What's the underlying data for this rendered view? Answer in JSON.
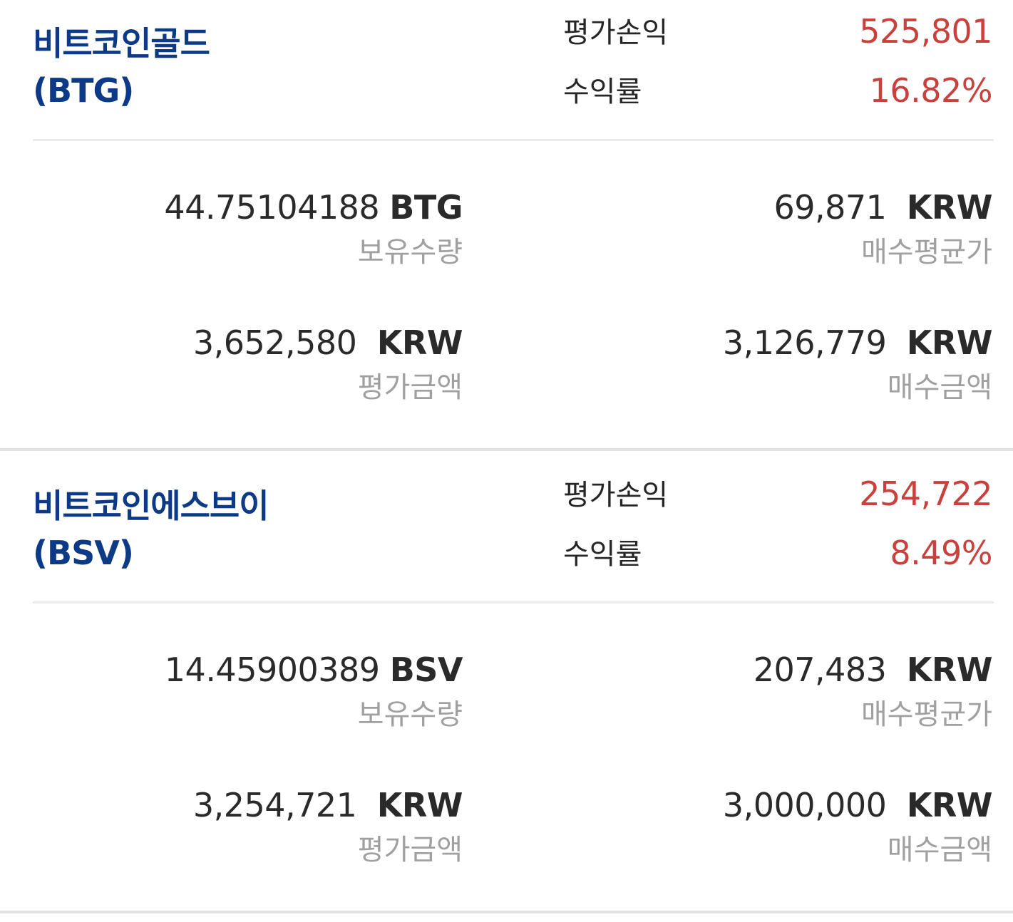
{
  "assets": [
    {
      "name": "비트코인골드",
      "symbol": "(BTG)",
      "pnl_label": "평가손익",
      "pnl_value": "525,801",
      "return_label": "수익률",
      "return_value": "16.82%",
      "quantity_value": "44.75104188",
      "quantity_unit": "BTG",
      "quantity_label": "보유수량",
      "avg_price_value": "69,871",
      "avg_price_unit": "KRW",
      "avg_price_label": "매수평균가",
      "eval_amount_value": "3,652,580",
      "eval_amount_unit": "KRW",
      "eval_amount_label": "평가금액",
      "buy_amount_value": "3,126,779",
      "buy_amount_unit": "KRW",
      "buy_amount_label": "매수금액"
    },
    {
      "name": "비트코인에스브이",
      "symbol": "(BSV)",
      "pnl_label": "평가손익",
      "pnl_value": "254,722",
      "return_label": "수익률",
      "return_value": "8.49%",
      "quantity_value": "14.45900389",
      "quantity_unit": "BSV",
      "quantity_label": "보유수량",
      "avg_price_value": "207,483",
      "avg_price_unit": "KRW",
      "avg_price_label": "매수평균가",
      "eval_amount_value": "3,254,721",
      "eval_amount_unit": "KRW",
      "eval_amount_label": "평가금액",
      "buy_amount_value": "3,000,000",
      "buy_amount_unit": "KRW",
      "buy_amount_label": "매수금액"
    }
  ],
  "colors": {
    "coin_name": "#0d3a86",
    "profit": "#c8413c",
    "value_text": "#2a2a2a",
    "sub_label": "#a0a0a0",
    "divider": "#e3e3e3"
  }
}
